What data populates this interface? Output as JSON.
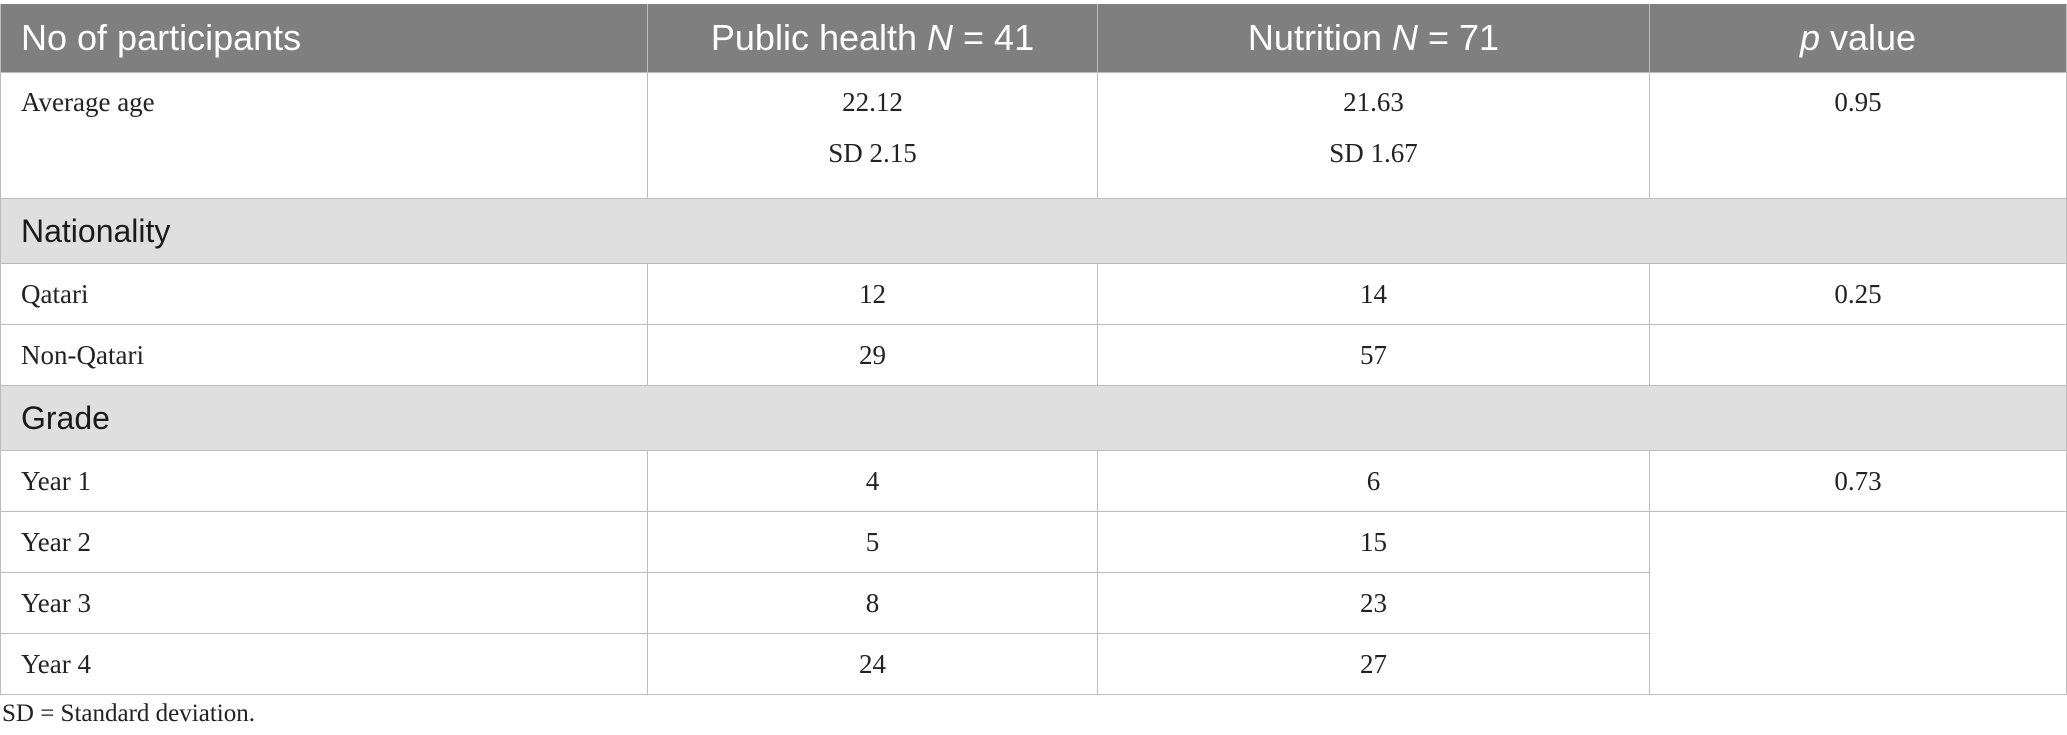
{
  "header": {
    "col1": "No of participants",
    "col2_text": "Public health ",
    "col2_n": "N",
    "col2_val": " = 41",
    "col3_text": "Nutrition ",
    "col3_n": "N",
    "col3_val": " = 71",
    "col4_p": "p",
    "col4_text": " value"
  },
  "rows": {
    "age": {
      "label": "Average age",
      "ph": "22.12",
      "ph_sd": "SD 2.15",
      "nu": "21.63",
      "nu_sd": "SD 1.67",
      "p": "0.95"
    },
    "nationality_section": "Nationality",
    "qatari": {
      "label": "Qatari",
      "ph": "12",
      "nu": "14",
      "p": "0.25"
    },
    "non_qatari": {
      "label": "Non-Qatari",
      "ph": "29",
      "nu": "57"
    },
    "grade_section": "Grade",
    "year1": {
      "label": "Year 1",
      "ph": "4",
      "nu": "6",
      "p": "0.73"
    },
    "year2": {
      "label": "Year 2",
      "ph": "5",
      "nu": "15"
    },
    "year3": {
      "label": "Year 3",
      "ph": "8",
      "nu": "23"
    },
    "year4": {
      "label": "Year 4",
      "ph": "24",
      "nu": "27"
    }
  },
  "footnote": "SD = Standard deviation.",
  "colors": {
    "header_bg": "#7f7f7f",
    "section_bg": "#e0dfe0",
    "border": "#bdbdbd"
  }
}
